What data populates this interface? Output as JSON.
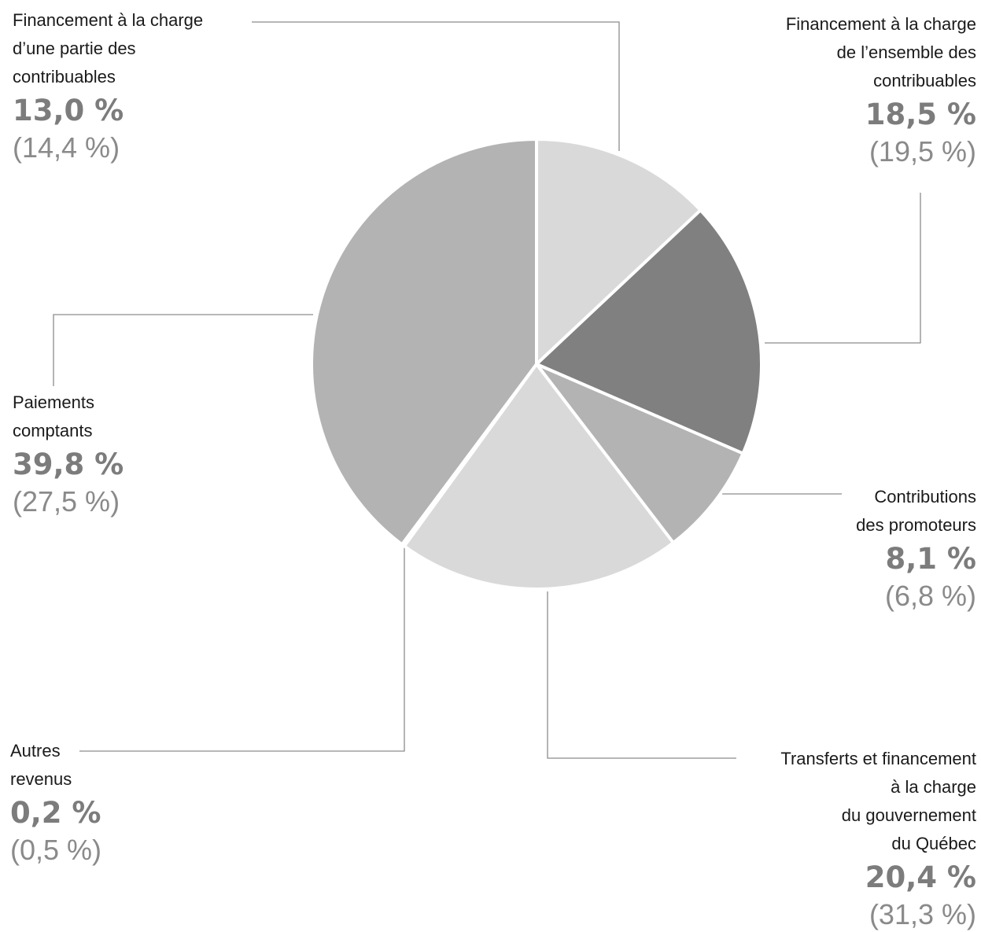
{
  "chart_data": {
    "type": "pie",
    "title": "",
    "series": [
      {
        "name": "",
        "values": [
          13.0,
          18.5,
          8.1,
          20.4,
          0.2,
          39.8
        ]
      }
    ],
    "categories": [
      "Financement à la charge\nd’une partie des\ncontribuables",
      "Financement à la charge\nde l’ensemble des\ncontribuables",
      "Contributions\ndes promoteurs",
      "Transferts et financement\nà la charge\ndu gouvernement\ndu Québec",
      "Autres\nrevenus",
      "Paiements\ncomptants"
    ],
    "slices": [
      {
        "label": "Financement à la charge\nd’une partie des\ncontribuables",
        "value": 13.0,
        "value_label": "13,0 %",
        "previous_label": "(14,4 %)",
        "color": "#d9d9d9"
      },
      {
        "label": "Financement à la charge\nde l’ensemble des\ncontribuables",
        "value": 18.5,
        "value_label": "18,5 %",
        "previous_label": "(19,5 %)",
        "color": "#808080"
      },
      {
        "label": "Contributions\ndes promoteurs",
        "value": 8.1,
        "value_label": "8,1 %",
        "previous_label": "(6,8 %)",
        "color": "#b3b3b3"
      },
      {
        "label": "Transferts et financement\nà la charge\ndu gouvernement\ndu Québec",
        "value": 20.4,
        "value_label": "20,4 %",
        "previous_label": "(31,3 %)",
        "color": "#d9d9d9"
      },
      {
        "label": "Autres\nrevenus",
        "value": 0.2,
        "value_label": "0,2 %",
        "previous_label": "(0,5 %)",
        "color": "#808080"
      },
      {
        "label": "Paiements\ncomptants",
        "value": 39.8,
        "value_label": "39,8 %",
        "previous_label": "(27,5 %)",
        "color": "#b3b3b3"
      }
    ],
    "legend": "none",
    "grid": false
  }
}
